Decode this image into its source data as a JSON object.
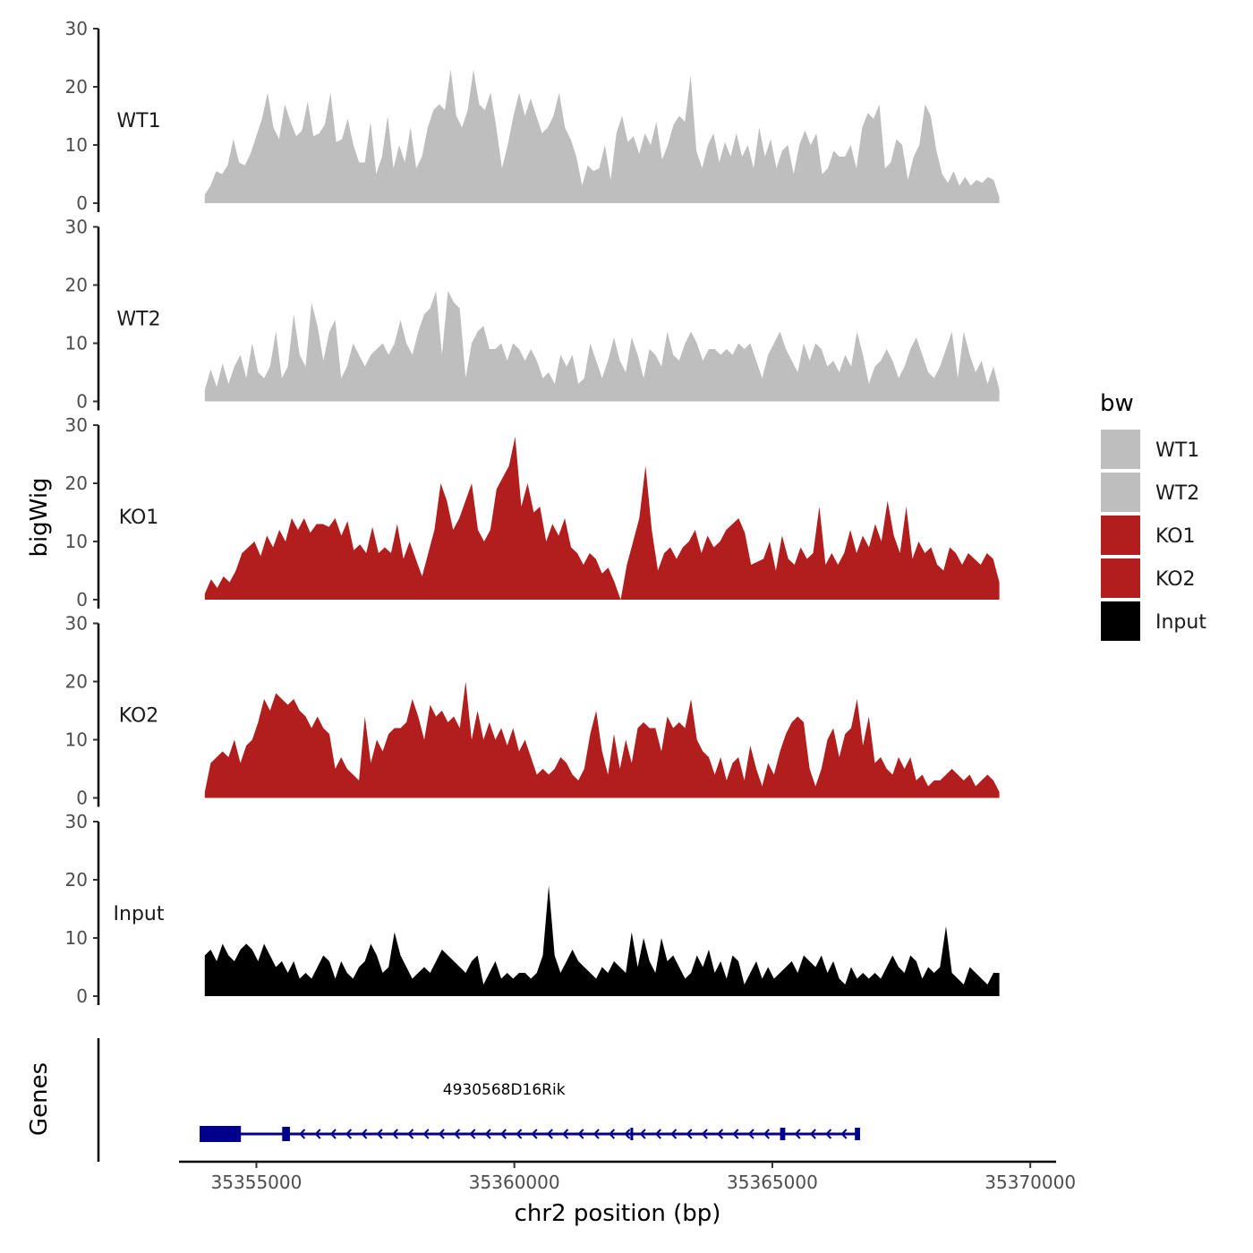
{
  "chart_data": {
    "type": "area",
    "title": "",
    "xlabel": "chr2 position (bp)",
    "ylabel": "bigWig",
    "genes_label": "Genes",
    "xlim": [
      35353500,
      35370500
    ],
    "x_ticks": [
      35355000,
      35360000,
      35365000,
      35370000
    ],
    "x_tick_labels": [
      "35355000",
      "35360000",
      "35365000",
      "35370000"
    ],
    "ylim": [
      0,
      30
    ],
    "y_ticks": [
      0,
      10,
      20,
      30
    ],
    "y_tick_labels": [
      "0",
      "10",
      "20",
      "30"
    ],
    "signal_range": [
      35354000,
      35369400
    ],
    "legend": {
      "title": "bw",
      "entries": [
        {
          "label": "WT1",
          "color": "#bebebe"
        },
        {
          "label": "WT2",
          "color": "#bebebe"
        },
        {
          "label": "KO1",
          "color": "#b21e1e"
        },
        {
          "label": "KO2",
          "color": "#b21e1e"
        },
        {
          "label": "Input",
          "color": "#000000"
        }
      ]
    },
    "series": [
      {
        "name": "WT1",
        "color": "#bebebe",
        "values": [
          1.5,
          3,
          5.5,
          5,
          6.5,
          11,
          7,
          6.5,
          8.5,
          11.5,
          14.5,
          19,
          13,
          11,
          17,
          14,
          11.5,
          12.5,
          17.5,
          11.5,
          12,
          13.5,
          19,
          10.5,
          11,
          14.5,
          10,
          7,
          7,
          14,
          5,
          8,
          15,
          6,
          10,
          7,
          13,
          6,
          8,
          13,
          16,
          17,
          16,
          23,
          15,
          13,
          16,
          23,
          17,
          16,
          19,
          13,
          6,
          10,
          15,
          19,
          15,
          18,
          15,
          12,
          13,
          15,
          19,
          13,
          11,
          8,
          3,
          6.5,
          5.5,
          6,
          10,
          4,
          12,
          15,
          10.5,
          11.5,
          8.5,
          12,
          10,
          14,
          7.5,
          10,
          13.5,
          15,
          14,
          22,
          9,
          6,
          10,
          12,
          7,
          10.5,
          8,
          12,
          8,
          10,
          6,
          13,
          8,
          11,
          6,
          9,
          10,
          5,
          10,
          12.5,
          10,
          12,
          5,
          6,
          9,
          8,
          8,
          10,
          6,
          13,
          15.5,
          14.5,
          17,
          6,
          7,
          11,
          10,
          4,
          8,
          10,
          17,
          15,
          9,
          5,
          3.5,
          5.5,
          3,
          4.5,
          3,
          4,
          3.5,
          4.5,
          4,
          1
        ]
      },
      {
        "name": "WT2",
        "color": "#bebebe",
        "values": [
          2,
          5.5,
          2.5,
          6.5,
          3,
          6,
          8,
          4,
          10,
          5,
          4,
          6,
          12,
          4,
          6,
          15,
          8,
          6,
          17,
          13,
          7,
          12,
          14,
          4,
          6,
          10,
          8,
          6,
          8,
          9,
          10,
          8,
          10,
          14,
          10,
          8,
          12,
          15,
          16,
          19,
          8,
          19,
          17,
          16,
          4,
          10,
          12,
          13,
          9,
          9,
          10,
          7,
          10,
          9,
          7,
          9,
          7,
          4,
          5,
          3,
          8,
          6,
          8,
          3,
          4,
          10,
          7,
          4,
          7,
          11,
          7,
          5,
          11,
          8,
          4,
          9,
          8,
          6,
          12,
          8,
          7,
          10,
          12,
          10,
          7,
          9,
          9,
          8,
          9,
          8,
          10,
          9,
          10,
          7,
          4,
          8,
          10,
          12,
          9,
          7,
          5,
          10,
          7,
          10,
          9,
          6,
          7,
          5,
          8,
          6,
          12,
          8,
          3,
          6,
          7,
          9,
          7,
          4,
          6,
          9,
          11,
          8,
          5,
          4,
          6,
          9,
          12,
          4,
          12,
          8,
          5,
          7,
          3,
          6,
          2
        ]
      },
      {
        "name": "KO1",
        "color": "#b21e1e",
        "values": [
          1,
          3.5,
          2,
          4,
          3,
          5,
          8,
          9,
          10,
          7.5,
          11,
          9,
          12,
          10,
          14,
          12,
          14,
          11.5,
          13,
          13,
          12.5,
          14,
          11,
          13.5,
          8.5,
          9.5,
          8,
          12.5,
          8,
          9,
          8,
          13,
          7,
          10,
          7,
          4,
          8,
          12,
          20,
          17,
          12,
          14,
          17,
          20,
          12,
          10,
          12,
          19,
          21,
          23,
          28,
          16,
          20,
          15,
          16,
          10,
          13,
          11,
          14,
          9,
          8,
          6,
          8,
          7,
          4.5,
          5.5,
          3,
          0,
          6,
          10,
          14,
          23,
          12,
          5,
          8,
          9,
          7,
          9,
          10,
          12,
          8,
          11,
          9,
          10,
          12,
          13,
          14,
          11.5,
          6,
          6.5,
          7,
          10,
          5,
          11,
          7,
          6,
          9,
          7,
          8,
          16,
          6,
          8,
          6,
          8,
          12,
          8,
          11,
          9,
          13,
          10,
          17,
          11,
          8,
          16,
          7,
          10,
          8,
          9,
          6,
          5,
          9,
          8,
          6,
          8,
          7,
          6,
          8,
          7,
          3
        ]
      },
      {
        "name": "KO2",
        "color": "#b21e1e",
        "values": [
          1,
          6,
          7,
          8,
          7,
          10,
          6,
          9,
          10,
          13,
          17,
          15,
          18,
          17,
          16,
          17,
          15,
          14,
          12,
          14,
          12,
          11,
          5,
          7,
          5,
          4,
          3,
          14,
          6,
          10,
          8,
          11,
          12,
          12,
          13,
          17,
          14,
          10,
          16,
          14,
          15,
          13,
          14,
          12,
          20,
          10,
          15,
          10,
          13,
          10,
          12,
          9,
          12,
          8,
          10,
          7,
          4,
          5,
          4,
          5,
          7,
          6,
          4,
          3,
          5,
          11,
          15,
          8,
          4,
          11,
          5,
          10,
          6,
          12,
          13,
          12,
          12,
          8,
          14,
          12,
          13,
          12,
          17,
          10,
          8,
          7,
          4,
          7,
          3,
          6,
          7,
          3,
          9,
          5,
          2,
          6,
          4,
          8,
          11,
          13,
          14,
          13,
          5,
          2,
          5,
          10,
          12,
          7,
          11,
          12,
          17,
          9,
          14,
          6,
          7,
          5,
          4,
          7,
          5,
          7,
          3,
          4,
          2,
          3,
          3,
          4,
          5,
          4,
          3,
          4,
          2,
          3,
          4,
          3,
          1
        ]
      },
      {
        "name": "Input",
        "color": "#000000",
        "values": [
          7,
          8,
          6,
          9,
          7,
          6,
          8,
          9,
          8,
          6,
          9,
          7,
          5,
          6,
          4,
          6,
          3,
          4,
          3,
          5,
          7,
          6,
          3,
          6,
          4,
          3,
          5,
          6,
          9,
          7,
          4,
          5,
          11,
          7,
          5,
          3,
          4,
          5,
          4,
          6,
          8,
          7,
          6,
          5,
          4,
          6,
          7,
          2,
          4,
          6,
          3,
          4,
          3,
          4,
          4,
          3,
          4,
          7,
          19,
          7,
          4,
          6,
          8,
          6,
          5,
          4,
          3,
          5,
          4,
          6,
          5,
          4,
          11,
          5,
          10,
          6,
          4,
          10,
          6,
          7,
          5,
          3,
          4,
          7,
          5,
          8,
          4,
          6,
          3,
          7,
          6,
          2,
          4,
          6,
          3,
          5,
          3,
          4,
          5,
          6,
          4,
          7,
          6,
          5,
          7,
          4,
          6,
          3,
          2,
          5,
          3,
          4,
          3,
          4,
          3,
          5,
          7,
          5,
          4,
          7,
          6,
          3,
          5,
          4,
          5,
          12,
          4,
          3,
          2,
          5,
          4,
          3,
          2,
          4,
          4
        ]
      }
    ],
    "gene": {
      "name": "4930568D16Rik",
      "start": 35353900,
      "end": 35366700,
      "strand": "-",
      "exons": [
        [
          35353900,
          35354700
        ],
        [
          35355500,
          35355650
        ],
        [
          35362250,
          35362300
        ],
        [
          35365150,
          35365250
        ],
        [
          35366600,
          35366700
        ]
      ]
    }
  }
}
